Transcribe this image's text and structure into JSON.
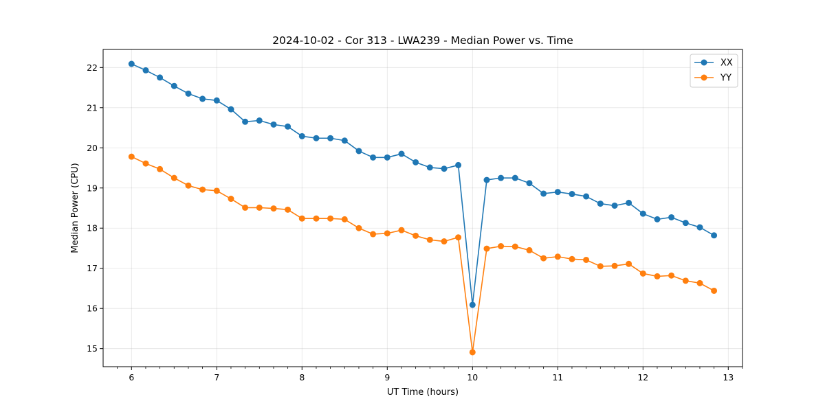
{
  "chart_data": {
    "type": "line",
    "title": "2024-10-02 - Cor 313 - LWA239 - Median Power vs. Time",
    "xlabel": "UT Time (hours)",
    "ylabel": "Median Power (CPU)",
    "xlim": [
      5.667,
      13.167
    ],
    "ylim": [
      14.55,
      22.45
    ],
    "xticks": [
      6,
      7,
      8,
      9,
      10,
      11,
      12,
      13
    ],
    "yticks": [
      15,
      16,
      17,
      18,
      19,
      20,
      21,
      22
    ],
    "grid": true,
    "legend_position": "top-right",
    "x": [
      6.0,
      6.167,
      6.333,
      6.5,
      6.667,
      6.833,
      7.0,
      7.167,
      7.333,
      7.5,
      7.667,
      7.833,
      8.0,
      8.167,
      8.333,
      8.5,
      8.667,
      8.833,
      9.0,
      9.167,
      9.333,
      9.5,
      9.667,
      9.833,
      10.0,
      10.167,
      10.333,
      10.5,
      10.667,
      10.833,
      11.0,
      11.167,
      11.333,
      11.5,
      11.667,
      11.833,
      12.0,
      12.167,
      12.333,
      12.5,
      12.667,
      12.833
    ],
    "series": [
      {
        "name": "XX",
        "color": "#1f77b4",
        "values": [
          22.09,
          21.93,
          21.75,
          21.54,
          21.35,
          21.22,
          21.18,
          20.96,
          20.65,
          20.68,
          20.58,
          20.53,
          20.29,
          20.24,
          20.24,
          20.18,
          19.92,
          19.76,
          19.76,
          19.85,
          19.64,
          19.51,
          19.48,
          19.57,
          16.09,
          19.2,
          19.25,
          19.25,
          19.12,
          18.86,
          18.9,
          18.85,
          18.79,
          18.61,
          18.56,
          18.63,
          18.36,
          18.22,
          18.27,
          18.13,
          18.02,
          17.82
        ]
      },
      {
        "name": "YY",
        "color": "#ff7f0e",
        "values": [
          19.78,
          19.61,
          19.47,
          19.25,
          19.06,
          18.96,
          18.93,
          18.73,
          18.51,
          18.51,
          18.49,
          18.46,
          18.24,
          18.24,
          18.24,
          18.22,
          18.0,
          17.85,
          17.87,
          17.95,
          17.81,
          17.71,
          17.67,
          17.77,
          14.91,
          17.49,
          17.55,
          17.54,
          17.45,
          17.25,
          17.29,
          17.23,
          17.21,
          17.05,
          17.06,
          17.11,
          16.87,
          16.8,
          16.82,
          16.69,
          16.63,
          16.44
        ]
      }
    ]
  }
}
